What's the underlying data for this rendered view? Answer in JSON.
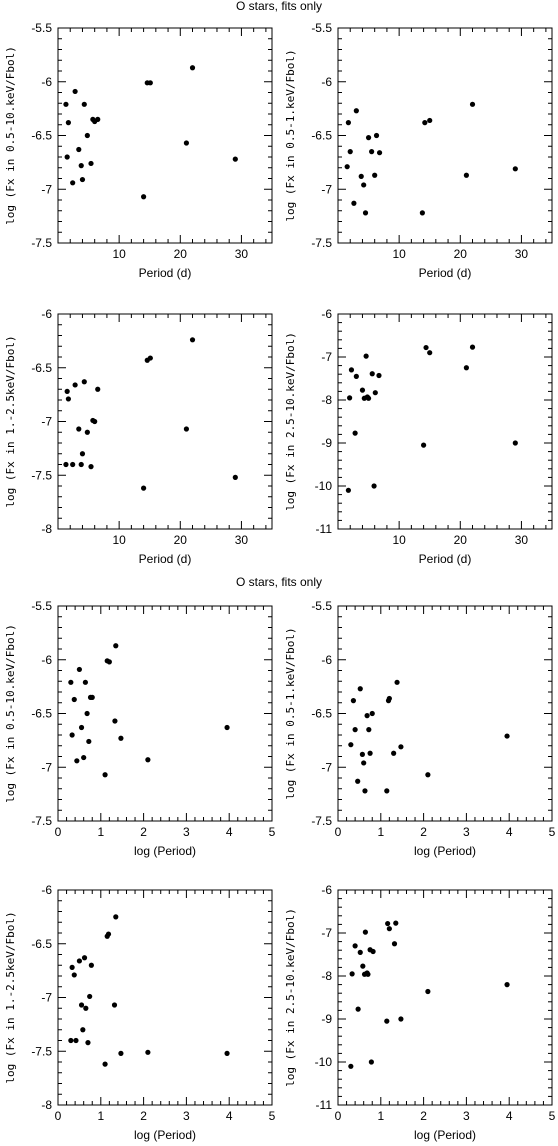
{
  "titles": [
    "O stars, fits only",
    "O stars, fits only"
  ],
  "chart_data": [
    {
      "type": "scatter",
      "xlabel": "Period (d)",
      "ylabel": "log (Fx in 0.5-10.keV/Fbol)",
      "xlim": [
        0,
        35
      ],
      "ylim": [
        -7.5,
        -5.5
      ],
      "xticks": [
        10,
        20,
        30
      ],
      "yticks": [
        -5.5,
        -6,
        -6.5,
        -7,
        -7.5
      ],
      "ytick_labels": [
        "-5.5",
        "-6",
        "-6.5",
        "-7",
        "-7.5"
      ],
      "x": [
        1.3,
        1.5,
        1.7,
        2.4,
        2.8,
        3.4,
        3.8,
        4.0,
        4.3,
        4.8,
        5.4,
        5.7,
        6.0,
        6.5,
        14.0,
        14.6,
        15.1,
        21.0,
        22.0,
        29.0
      ],
      "y": [
        -6.21,
        -6.7,
        -6.38,
        -6.94,
        -6.09,
        -6.63,
        -6.78,
        -6.91,
        -6.21,
        -6.5,
        -6.76,
        -6.35,
        -6.37,
        -6.35,
        -7.07,
        -6.01,
        -6.01,
        -6.57,
        -5.87,
        -6.72
      ]
    },
    {
      "type": "scatter",
      "xlabel": "Period (d)",
      "ylabel": "log (Fx in 0.5-1.keV/Fbol)",
      "xlim": [
        0,
        35
      ],
      "ylim": [
        -7.5,
        -5.5
      ],
      "xticks": [
        10,
        20,
        30
      ],
      "yticks": [
        -5.5,
        -6,
        -6.5,
        -7,
        -7.5
      ],
      "ytick_labels": [
        "-5.5",
        "-6",
        "-6.5",
        "-7",
        "-7.5"
      ],
      "x": [
        1.5,
        1.7,
        2.0,
        2.6,
        3.0,
        3.8,
        4.2,
        4.5,
        5.0,
        5.5,
        6.0,
        6.3,
        6.8,
        13.8,
        14.2,
        15.0,
        21.0,
        22.0,
        29.0
      ],
      "y": [
        -6.79,
        -6.38,
        -6.65,
        -7.13,
        -6.27,
        -6.88,
        -6.96,
        -7.22,
        -6.52,
        -6.65,
        -6.87,
        -6.5,
        -6.66,
        -7.22,
        -6.38,
        -6.36,
        -6.87,
        -6.21,
        -6.81
      ]
    },
    {
      "type": "scatter",
      "xlabel": "Period (d)",
      "ylabel": "log (Fx in 1.-2.5keV/Fbol)",
      "xlim": [
        0,
        35
      ],
      "ylim": [
        -8,
        -6
      ],
      "xticks": [
        10,
        20,
        30
      ],
      "yticks": [
        -6,
        -6.5,
        -7,
        -7.5,
        -8
      ],
      "ytick_labels": [
        "-6",
        "-6.5",
        "-7",
        "-7.5",
        "-8"
      ],
      "x": [
        1.3,
        1.5,
        1.7,
        2.4,
        2.8,
        3.4,
        3.8,
        4.0,
        4.3,
        4.8,
        5.4,
        5.7,
        6.0,
        6.5,
        14.0,
        14.6,
        15.1,
        21.0,
        22.0,
        29.0
      ],
      "y": [
        -7.4,
        -6.72,
        -6.79,
        -7.4,
        -6.66,
        -7.07,
        -7.4,
        -7.3,
        -6.63,
        -7.1,
        -7.42,
        -6.99,
        -7.0,
        -6.7,
        -7.62,
        -6.43,
        -6.41,
        -7.07,
        -6.24,
        -7.52
      ]
    },
    {
      "type": "scatter",
      "xlabel": "Period (d)",
      "ylabel": "log (Fx in 2.5-10.keV/Fbol)",
      "xlim": [
        0,
        35
      ],
      "ylim": [
        -11,
        -6
      ],
      "xticks": [
        10,
        20,
        30
      ],
      "yticks": [
        -6,
        -7,
        -8,
        -9,
        -10,
        -11
      ],
      "ytick_labels": [
        "-6",
        "-7",
        "-8",
        "-9",
        "-10",
        "-11"
      ],
      "x": [
        1.7,
        1.9,
        2.2,
        2.8,
        3.0,
        4.0,
        4.3,
        4.6,
        4.8,
        5.0,
        5.6,
        5.9,
        6.1,
        6.7,
        14.0,
        14.4,
        15.0,
        21.0,
        22.0,
        29.0
      ],
      "y": [
        -10.1,
        -7.95,
        -7.3,
        -8.77,
        -7.45,
        -7.77,
        -7.96,
        -6.98,
        -7.93,
        -7.96,
        -7.39,
        -10.0,
        -7.83,
        -7.43,
        -9.05,
        -6.78,
        -6.9,
        -7.25,
        -6.77,
        -9.0
      ]
    },
    {
      "type": "scatter",
      "xlabel": "log (Period)",
      "ylabel": "log (Fx in 0.5-10.keV/Fbol)",
      "xlim": [
        0,
        5
      ],
      "ylim": [
        -7.5,
        -5.5
      ],
      "xticks": [
        0,
        1,
        2,
        3,
        4,
        5
      ],
      "yticks": [
        -5.5,
        -6,
        -6.5,
        -7,
        -7.5
      ],
      "ytick_labels": [
        "-5.5",
        "-6",
        "-6.5",
        "-7",
        "-7.5"
      ],
      "x": [
        0.3,
        0.33,
        0.38,
        0.44,
        0.5,
        0.55,
        0.6,
        0.64,
        0.68,
        0.72,
        0.76,
        0.8,
        1.1,
        1.15,
        1.2,
        1.33,
        1.35,
        1.47,
        2.1,
        3.95
      ],
      "y": [
        -6.21,
        -6.7,
        -6.37,
        -6.94,
        -6.09,
        -6.63,
        -6.91,
        -6.21,
        -6.5,
        -6.76,
        -6.35,
        -6.35,
        -7.07,
        -6.01,
        -6.02,
        -6.57,
        -5.87,
        -6.73,
        -6.93,
        -6.63
      ]
    },
    {
      "type": "scatter",
      "xlabel": "log (Period)",
      "ylabel": "log (Fx in 0.5-1.keV/Fbol)",
      "xlim": [
        0,
        5
      ],
      "ylim": [
        -7.5,
        -5.5
      ],
      "xticks": [
        0,
        1,
        2,
        3,
        4,
        5
      ],
      "yticks": [
        -5.5,
        -6,
        -6.5,
        -7,
        -7.5
      ],
      "ytick_labels": [
        "-5.5",
        "-6",
        "-6.5",
        "-7",
        "-7.5"
      ],
      "x": [
        0.3,
        0.36,
        0.4,
        0.46,
        0.52,
        0.57,
        0.6,
        0.63,
        0.68,
        0.72,
        0.75,
        0.8,
        1.14,
        1.18,
        1.2,
        1.3,
        1.38,
        1.47,
        2.1,
        3.95
      ],
      "y": [
        -6.79,
        -6.38,
        -6.65,
        -7.13,
        -6.27,
        -6.88,
        -6.96,
        -7.22,
        -6.52,
        -6.65,
        -6.87,
        -6.5,
        -7.22,
        -6.38,
        -6.36,
        -6.87,
        -6.21,
        -6.81,
        -7.07,
        -6.71
      ]
    },
    {
      "type": "scatter",
      "xlabel": "log (Period)",
      "ylabel": "log (Fx in 1.-2.5keV/Fbol)",
      "xlim": [
        0,
        5
      ],
      "ylim": [
        -8,
        -6
      ],
      "xticks": [
        0,
        1,
        2,
        3,
        4,
        5
      ],
      "yticks": [
        -6,
        -6.5,
        -7,
        -7.5,
        -8
      ],
      "ytick_labels": [
        "-6",
        "-6.5",
        "-7",
        "-7.5",
        "-8"
      ],
      "x": [
        0.3,
        0.33,
        0.38,
        0.42,
        0.5,
        0.55,
        0.58,
        0.62,
        0.65,
        0.7,
        0.74,
        0.78,
        1.1,
        1.15,
        1.18,
        1.32,
        1.35,
        1.47,
        2.1,
        3.95
      ],
      "y": [
        -7.4,
        -6.72,
        -6.79,
        -7.4,
        -6.66,
        -7.07,
        -7.3,
        -6.63,
        -7.1,
        -7.42,
        -6.99,
        -6.7,
        -7.62,
        -6.43,
        -6.41,
        -7.07,
        -6.25,
        -7.52,
        -7.51,
        -7.52
      ]
    },
    {
      "type": "scatter",
      "xlabel": "log (Period)",
      "ylabel": "log (Fx in 2.5-10.keV/Fbol)",
      "xlim": [
        0,
        5
      ],
      "ylim": [
        -11,
        -6
      ],
      "xticks": [
        0,
        1,
        2,
        3,
        4,
        5
      ],
      "yticks": [
        -6,
        -7,
        -8,
        -9,
        -10,
        -11
      ],
      "ytick_labels": [
        "-6",
        "-7",
        "-8",
        "-9",
        "-10",
        "-11"
      ],
      "x": [
        0.3,
        0.33,
        0.4,
        0.47,
        0.52,
        0.58,
        0.62,
        0.64,
        0.68,
        0.7,
        0.75,
        0.78,
        0.82,
        1.14,
        1.16,
        1.2,
        1.32,
        1.35,
        1.47,
        2.1,
        3.95
      ],
      "y": [
        -10.1,
        -7.95,
        -7.3,
        -8.77,
        -7.45,
        -7.77,
        -7.96,
        -6.98,
        -7.93,
        -7.96,
        -7.39,
        -10.0,
        -7.43,
        -9.05,
        -6.78,
        -6.9,
        -7.25,
        -6.77,
        -9.0,
        -8.36,
        -8.2
      ]
    }
  ]
}
